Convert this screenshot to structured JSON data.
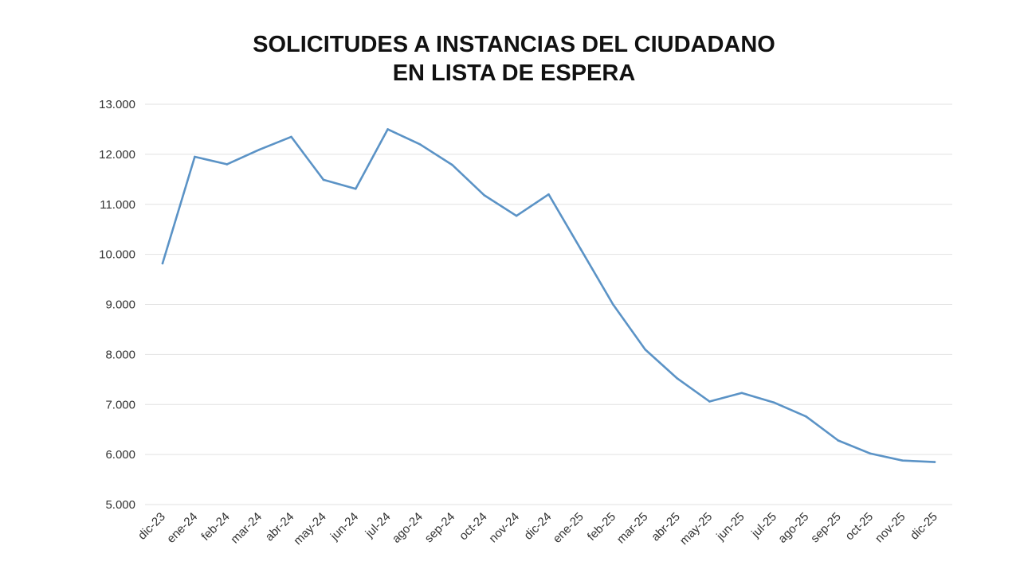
{
  "chart_data": {
    "type": "line",
    "title_lines": [
      "SOLICITUDES A INSTANCIAS DEL CIUDADANO",
      "EN LISTA DE ESPERA"
    ],
    "categories": [
      "dic-23",
      "ene-24",
      "feb-24",
      "mar-24",
      "abr-24",
      "may-24",
      "jun-24",
      "jul-24",
      "ago-24",
      "sep-24",
      "oct-24",
      "nov-24",
      "dic-24",
      "ene-25",
      "feb-25",
      "mar-25",
      "abr-25",
      "may-25",
      "jun-25",
      "jul-25",
      "ago-25",
      "sep-25",
      "oct-25",
      "nov-25",
      "dic-25"
    ],
    "series": [
      {
        "values": [
          9820,
          11950,
          11800,
          12090,
          12350,
          11490,
          11310,
          12500,
          12200,
          11790,
          11180,
          10770,
          11200,
          10100,
          9000,
          8100,
          7520,
          7060,
          7230,
          7040,
          6760,
          6280,
          6020,
          5880,
          5850
        ],
        "color": "#5b93c6"
      }
    ],
    "ylim": [
      5000,
      13000
    ],
    "yticks": [
      5000,
      6000,
      7000,
      8000,
      9000,
      10000,
      11000,
      12000,
      13000
    ],
    "ytick_labels": [
      "5.000",
      "6.000",
      "7.000",
      "8.000",
      "9.000",
      "10.000",
      "11.000",
      "12.000",
      "13.000"
    ],
    "grid": true,
    "legend": "none",
    "xlabel": "",
    "ylabel": ""
  }
}
